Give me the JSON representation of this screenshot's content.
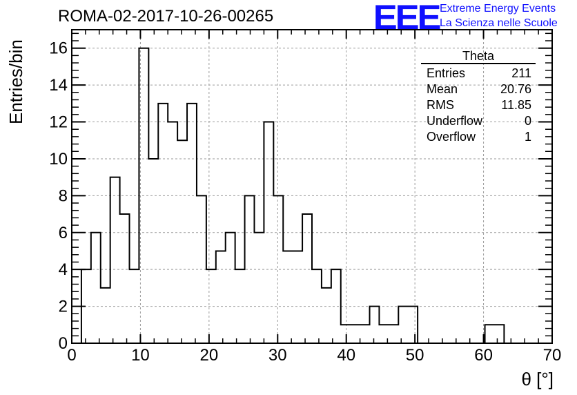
{
  "header": {
    "title": "ROMA-02-2017-10-26-00265",
    "logo_mark": "EEE",
    "logo_line1": "Extreme Energy Events",
    "logo_line2": "La Scienza nelle Scuole"
  },
  "stats": {
    "name": "Theta",
    "rows": [
      {
        "label": "Entries",
        "value": "211"
      },
      {
        "label": "Mean",
        "value": "20.76"
      },
      {
        "label": "RMS",
        "value": "11.85"
      },
      {
        "label": "Underflow",
        "value": "0"
      },
      {
        "label": "Overflow",
        "value": "1"
      }
    ]
  },
  "chart_data": {
    "type": "histogram",
    "title": "ROMA-02-2017-10-26-00265",
    "xlabel": "θ [°]",
    "ylabel": "Entries/bin",
    "xlim": [
      0,
      70
    ],
    "ylim": [
      0,
      17
    ],
    "grid": true,
    "xticks": [
      0,
      10,
      20,
      30,
      40,
      50,
      60,
      70
    ],
    "yticks": [
      0,
      2,
      4,
      6,
      8,
      10,
      12,
      14,
      16
    ],
    "bin_width": 1.4,
    "x_start": 0,
    "values": [
      0,
      4,
      6,
      3,
      9,
      7,
      4,
      16,
      10,
      13,
      12,
      11,
      13,
      8,
      4,
      5,
      6,
      4,
      8,
      6,
      12,
      8,
      5,
      5,
      7,
      4,
      3,
      4,
      1,
      1,
      1,
      2,
      1,
      1,
      2,
      2,
      0,
      0,
      0,
      0,
      0,
      0,
      0,
      1,
      1,
      0,
      0,
      0,
      0,
      0
    ],
    "line_color": "#000000",
    "grid_color": "#9a9a9a"
  }
}
